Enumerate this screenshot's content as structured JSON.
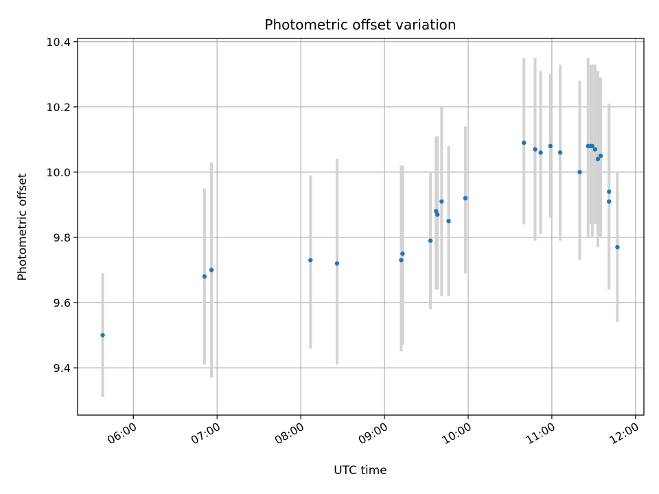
{
  "chart_data": {
    "type": "scatter",
    "title": "Photometric offset variation",
    "xlabel": "UTC time",
    "ylabel": "Photometric offset",
    "x_tick_labels": [
      "06:00",
      "07:00",
      "08:00",
      "09:00",
      "10:00",
      "11:00",
      "12:00"
    ],
    "y_tick_labels": [
      "9.4",
      "9.6",
      "9.8",
      "10.0",
      "10.2",
      "10.4"
    ],
    "xlim": [
      "05:20",
      "12:06"
    ],
    "ylim": [
      9.255,
      10.41
    ],
    "grid": true,
    "point_color": "#1f77b4",
    "errorbar_color": "#d3d3d3",
    "points": [
      {
        "x": "05:38",
        "y": 9.5,
        "yerr_low": 9.31,
        "yerr_high": 9.69
      },
      {
        "x": "06:51",
        "y": 9.68,
        "yerr_low": 9.41,
        "yerr_high": 9.95
      },
      {
        "x": "06:56",
        "y": 9.7,
        "yerr_low": 9.37,
        "yerr_high": 10.03
      },
      {
        "x": "08:07",
        "y": 9.73,
        "yerr_low": 9.46,
        "yerr_high": 9.99
      },
      {
        "x": "08:26",
        "y": 9.72,
        "yerr_low": 9.41,
        "yerr_high": 10.04
      },
      {
        "x": "09:12",
        "y": 9.73,
        "yerr_low": 9.45,
        "yerr_high": 10.02
      },
      {
        "x": "09:13",
        "y": 9.75,
        "yerr_low": 9.47,
        "yerr_high": 10.02
      },
      {
        "x": "09:33",
        "y": 9.79,
        "yerr_low": 9.58,
        "yerr_high": 10.0
      },
      {
        "x": "09:37",
        "y": 9.88,
        "yerr_low": 9.64,
        "yerr_high": 10.11
      },
      {
        "x": "09:38",
        "y": 9.87,
        "yerr_low": 9.64,
        "yerr_high": 10.11
      },
      {
        "x": "09:41",
        "y": 9.91,
        "yerr_low": 9.62,
        "yerr_high": 10.2
      },
      {
        "x": "09:46",
        "y": 9.85,
        "yerr_low": 9.62,
        "yerr_high": 10.08
      },
      {
        "x": "09:58",
        "y": 9.92,
        "yerr_low": 9.69,
        "yerr_high": 10.14
      },
      {
        "x": "10:40",
        "y": 10.09,
        "yerr_low": 9.84,
        "yerr_high": 10.35
      },
      {
        "x": "10:48",
        "y": 10.07,
        "yerr_low": 9.79,
        "yerr_high": 10.35
      },
      {
        "x": "10:52",
        "y": 10.06,
        "yerr_low": 9.81,
        "yerr_high": 10.31
      },
      {
        "x": "10:59",
        "y": 10.08,
        "yerr_low": 9.86,
        "yerr_high": 10.3
      },
      {
        "x": "11:06",
        "y": 10.06,
        "yerr_low": 9.79,
        "yerr_high": 10.33
      },
      {
        "x": "11:20",
        "y": 10.0,
        "yerr_low": 9.73,
        "yerr_high": 10.28
      },
      {
        "x": "11:26",
        "y": 10.08,
        "yerr_low": 9.8,
        "yerr_high": 10.35
      },
      {
        "x": "11:28",
        "y": 10.08,
        "yerr_low": 9.84,
        "yerr_high": 10.33
      },
      {
        "x": "11:29",
        "y": 10.08,
        "yerr_low": 9.8,
        "yerr_high": 10.33
      },
      {
        "x": "11:31",
        "y": 10.07,
        "yerr_low": 9.84,
        "yerr_high": 10.33
      },
      {
        "x": "11:33",
        "y": 10.04,
        "yerr_low": 9.77,
        "yerr_high": 10.31
      },
      {
        "x": "11:35",
        "y": 10.05,
        "yerr_low": 9.8,
        "yerr_high": 10.29
      },
      {
        "x": "11:41",
        "y": 9.94,
        "yerr_low": 9.64,
        "yerr_high": 10.21
      },
      {
        "x": "11:41",
        "y": 9.91,
        "yerr_low": 9.64,
        "yerr_high": 10.2
      },
      {
        "x": "11:47",
        "y": 9.77,
        "yerr_low": 9.54,
        "yerr_high": 10.0
      }
    ]
  }
}
